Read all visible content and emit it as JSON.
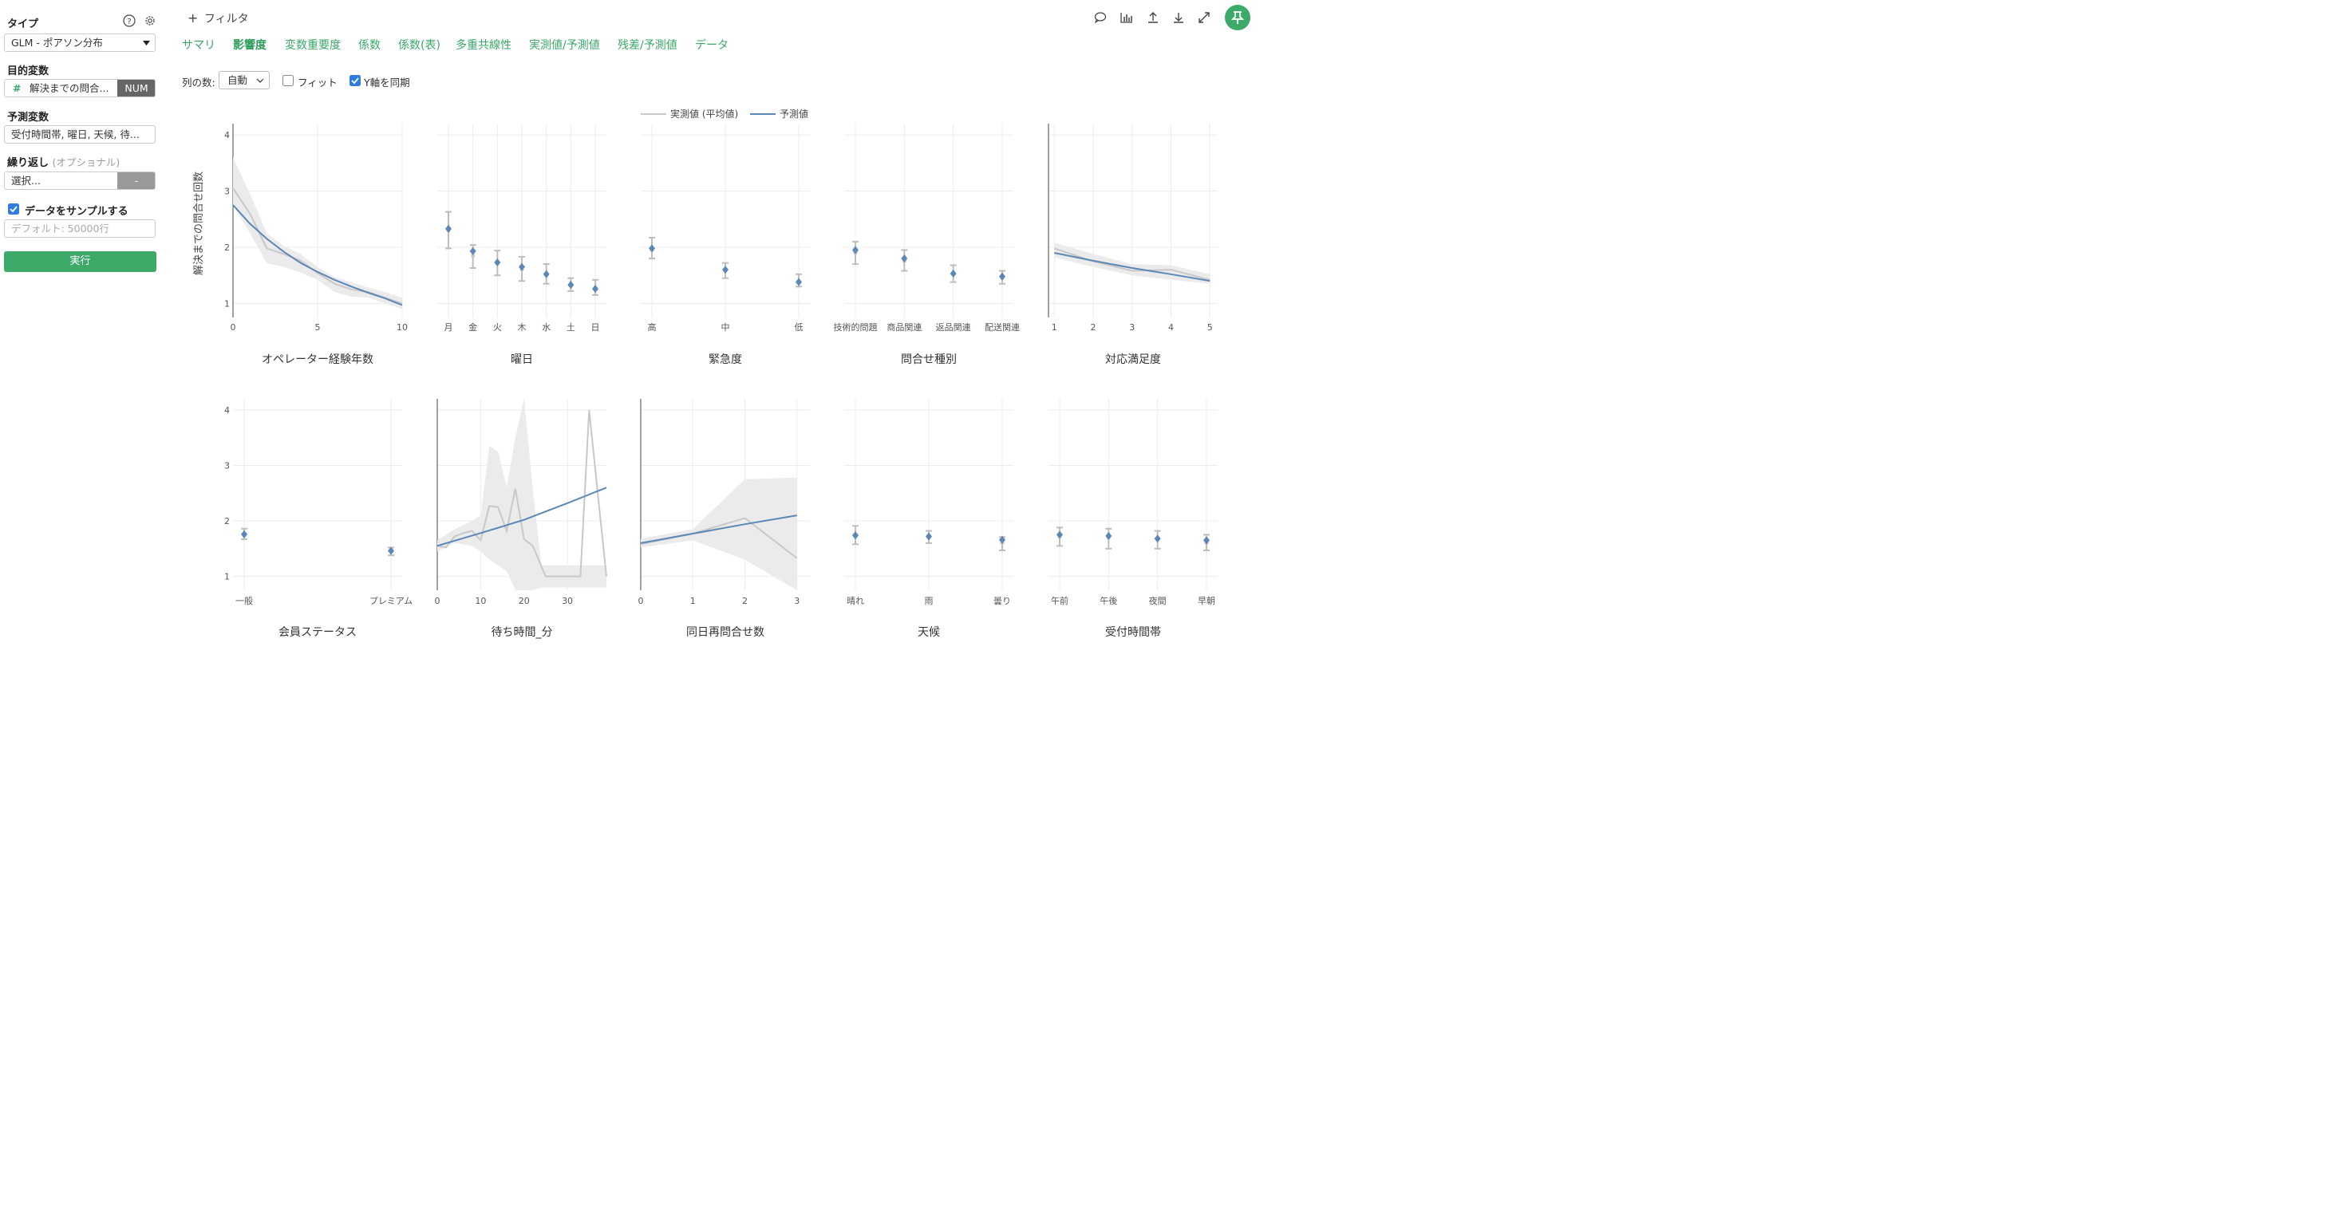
{
  "sidebar": {
    "type_label": "タイプ",
    "type_value": "GLM - ポアソン分布",
    "target_label": "目的変数",
    "target_value": "解決までの問合...",
    "target_badge": "NUM",
    "predictor_label": "予測変数",
    "predictor_value": "受付時間帯, 曜日, 天候, 待...",
    "repeat_label": "繰り返し",
    "repeat_optional": "(オプショナル)",
    "repeat_placeholder": "選択...",
    "repeat_btn": "-",
    "sample_label": "データをサンプルする",
    "sample_checked": true,
    "sample_placeholder": "デフォルト: 50000行",
    "run_label": "実行"
  },
  "toolbar": {
    "filter_label": "フィルタ",
    "icons": [
      "comment-icon",
      "chart-icon",
      "upload-icon",
      "download-icon",
      "expand-icon",
      "pin-icon"
    ]
  },
  "tabs": [
    {
      "label": "サマリ",
      "active": false
    },
    {
      "label": "影響度",
      "active": true
    },
    {
      "label": "変数重要度",
      "active": false
    },
    {
      "label": "係数",
      "active": false
    },
    {
      "label": "係数(表)",
      "active": false
    },
    {
      "label": "多重共線性",
      "active": false
    },
    {
      "label": "実測値/予測値",
      "active": false
    },
    {
      "label": "残差/予測値",
      "active": false
    },
    {
      "label": "データ",
      "active": false
    }
  ],
  "options": {
    "columns_label": "列の数:",
    "columns_value": "自動",
    "fit_label": "フィット",
    "fit_checked": false,
    "sync_label": "Y軸を同期",
    "sync_checked": true
  },
  "colors": {
    "accent": "#3aa768",
    "actual": "#c8c8c8",
    "predicted": "#5b87b7",
    "band": "#ebebeb"
  },
  "chart_data": {
    "legend": [
      "実測値 (平均値)",
      "予測値"
    ],
    "ylabel": "解決までの問合せ回数",
    "yticks": [
      "1",
      "2",
      "3",
      "4"
    ],
    "ylim": [
      0.75,
      4.2
    ],
    "panels": [
      {
        "title": "オペレーター経験年数",
        "type": "line",
        "xticks": [
          {
            "v": 0,
            "label": "0"
          },
          {
            "v": 5,
            "label": "5"
          },
          {
            "v": 10,
            "label": "10"
          }
        ],
        "xlim": [
          0,
          10
        ],
        "pred": [
          [
            0,
            2.75
          ],
          [
            1,
            2.42
          ],
          [
            2,
            2.15
          ],
          [
            3,
            1.92
          ],
          [
            4,
            1.72
          ],
          [
            5,
            1.56
          ],
          [
            6,
            1.42
          ],
          [
            7,
            1.3
          ],
          [
            8,
            1.19
          ],
          [
            9,
            1.09
          ],
          [
            10,
            0.97
          ]
        ],
        "actual": [
          [
            0,
            3.05
          ],
          [
            1,
            2.6
          ],
          [
            2,
            1.98
          ],
          [
            3,
            1.88
          ],
          [
            4,
            1.76
          ],
          [
            5,
            1.54
          ],
          [
            6,
            1.35
          ],
          [
            7,
            1.25
          ],
          [
            8,
            1.2
          ],
          [
            9,
            1.1
          ],
          [
            10,
            1.0
          ]
        ],
        "band": [
          [
            0,
            3.6,
            2.75
          ],
          [
            1,
            2.95,
            2.25
          ],
          [
            2,
            2.25,
            1.72
          ],
          [
            3,
            2.02,
            1.65
          ],
          [
            4,
            1.88,
            1.55
          ],
          [
            5,
            1.65,
            1.42
          ],
          [
            6,
            1.47,
            1.2
          ],
          [
            7,
            1.38,
            1.12
          ],
          [
            8,
            1.28,
            1.1
          ],
          [
            9,
            1.2,
            1.0
          ],
          [
            10,
            1.1,
            0.9
          ]
        ]
      },
      {
        "title": "曜日",
        "type": "points",
        "cats": [
          "月",
          "金",
          "火",
          "木",
          "水",
          "土",
          "日"
        ],
        "pred": [
          2.33,
          1.93,
          1.73,
          1.65,
          1.52,
          1.33,
          1.26
        ],
        "actual": [
          2.3,
          1.85,
          1.72,
          1.6,
          1.52,
          1.33,
          1.28
        ],
        "lo": [
          1.98,
          1.63,
          1.5,
          1.4,
          1.35,
          1.22,
          1.15
        ],
        "hi": [
          2.63,
          2.04,
          1.94,
          1.83,
          1.7,
          1.45,
          1.42
        ]
      },
      {
        "title": "緊急度",
        "type": "points",
        "cats": [
          "高",
          "中",
          "低"
        ],
        "pred": [
          1.98,
          1.6,
          1.38
        ],
        "actual": [
          1.95,
          1.58,
          1.4
        ],
        "lo": [
          1.8,
          1.45,
          1.3
        ],
        "hi": [
          2.17,
          1.72,
          1.52
        ]
      },
      {
        "title": "問合せ種別",
        "type": "points",
        "cats": [
          "技術的問題",
          "商品関連",
          "返品関連",
          "配送関連"
        ],
        "pred": [
          1.95,
          1.8,
          1.53,
          1.48
        ],
        "actual": [
          1.9,
          1.75,
          1.52,
          1.45
        ],
        "lo": [
          1.7,
          1.58,
          1.38,
          1.35
        ],
        "hi": [
          2.1,
          1.95,
          1.68,
          1.58
        ]
      },
      {
        "title": "対応満足度",
        "type": "line",
        "xticks": [
          {
            "v": 1,
            "label": "1"
          },
          {
            "v": 2,
            "label": "2"
          },
          {
            "v": 3,
            "label": "3"
          },
          {
            "v": 4,
            "label": "4"
          },
          {
            "v": 5,
            "label": "5"
          }
        ],
        "xlim": [
          0.85,
          5.2
        ],
        "pred": [
          [
            1,
            1.9
          ],
          [
            2,
            1.76
          ],
          [
            3,
            1.63
          ],
          [
            4,
            1.52
          ],
          [
            5,
            1.4
          ]
        ],
        "actual": [
          [
            1,
            1.98
          ],
          [
            2,
            1.75
          ],
          [
            3,
            1.58
          ],
          [
            4,
            1.6
          ],
          [
            5,
            1.42
          ]
        ],
        "band": [
          [
            1,
            2.08,
            1.82
          ],
          [
            2,
            1.88,
            1.65
          ],
          [
            3,
            1.7,
            1.5
          ],
          [
            4,
            1.68,
            1.42
          ],
          [
            5,
            1.52,
            1.35
          ]
        ]
      },
      {
        "title": "会員ステータス",
        "type": "points",
        "cats": [
          "一般",
          "プレミアム"
        ],
        "pred": [
          1.76,
          1.46
        ],
        "actual": [
          1.73,
          1.45
        ],
        "lo": [
          1.67,
          1.38
        ],
        "hi": [
          1.86,
          1.52
        ]
      },
      {
        "title": "待ち時間_分",
        "type": "line",
        "xticks": [
          {
            "v": 0,
            "label": "0"
          },
          {
            "v": 10,
            "label": "10"
          },
          {
            "v": 20,
            "label": "20"
          },
          {
            "v": 30,
            "label": "30"
          }
        ],
        "xlim": [
          0,
          39
        ],
        "pred": [
          [
            0,
            1.55
          ],
          [
            10,
            1.78
          ],
          [
            20,
            2.02
          ],
          [
            30,
            2.32
          ],
          [
            39,
            2.6
          ]
        ],
        "actual": [
          [
            0,
            1.55
          ],
          [
            2,
            1.52
          ],
          [
            4,
            1.72
          ],
          [
            6,
            1.78
          ],
          [
            8,
            1.82
          ],
          [
            10,
            1.65
          ],
          [
            12,
            2.27
          ],
          [
            14,
            2.25
          ],
          [
            16,
            1.82
          ],
          [
            18,
            2.58
          ],
          [
            20,
            1.67
          ],
          [
            22,
            1.55
          ],
          [
            25,
            1.0
          ],
          [
            30,
            1.0
          ],
          [
            33,
            1.0
          ],
          [
            35,
            4.0
          ],
          [
            37,
            2.5
          ],
          [
            39,
            1.0
          ]
        ],
        "band": [
          [
            0,
            1.65,
            1.45
          ],
          [
            4,
            1.85,
            1.6
          ],
          [
            8,
            2.0,
            1.55
          ],
          [
            10,
            2.1,
            1.45
          ],
          [
            12,
            3.35,
            1.3
          ],
          [
            14,
            3.25,
            1.2
          ],
          [
            16,
            2.6,
            1.1
          ],
          [
            18,
            3.5,
            0.75
          ],
          [
            20,
            4.2,
            0.75
          ],
          [
            22,
            2.6,
            0.75
          ],
          [
            24,
            1.2,
            0.8
          ],
          [
            39,
            1.2,
            0.8
          ]
        ]
      },
      {
        "title": "同日再問合せ数",
        "type": "line",
        "xticks": [
          {
            "v": 0,
            "label": "0"
          },
          {
            "v": 1,
            "label": "1"
          },
          {
            "v": 2,
            "label": "2"
          },
          {
            "v": 3,
            "label": "3"
          }
        ],
        "xlim": [
          0,
          3.25
        ],
        "pred": [
          [
            0,
            1.6
          ],
          [
            1,
            1.77
          ],
          [
            2,
            1.94
          ],
          [
            3,
            2.1
          ]
        ],
        "actual": [
          [
            0,
            1.58
          ],
          [
            1,
            1.77
          ],
          [
            2,
            2.05
          ],
          [
            3,
            1.33
          ]
        ],
        "band": [
          [
            0,
            1.68,
            1.52
          ],
          [
            1,
            1.85,
            1.65
          ],
          [
            2,
            2.75,
            1.3
          ],
          [
            3,
            2.78,
            0.75
          ]
        ]
      },
      {
        "title": "天候",
        "type": "points",
        "cats": [
          "晴れ",
          "雨",
          "曇り"
        ],
        "pred": [
          1.74,
          1.72,
          1.66
        ],
        "actual": [
          1.72,
          1.7,
          1.6
        ],
        "lo": [
          1.58,
          1.6,
          1.47
        ],
        "hi": [
          1.91,
          1.82,
          1.71
        ]
      },
      {
        "title": "受付時間帯",
        "type": "points",
        "cats": [
          "午前",
          "午後",
          "夜間",
          "早朝"
        ],
        "pred": [
          1.75,
          1.73,
          1.68,
          1.65
        ],
        "actual": [
          1.72,
          1.7,
          1.66,
          1.6
        ],
        "lo": [
          1.55,
          1.5,
          1.5,
          1.47
        ],
        "hi": [
          1.88,
          1.86,
          1.82,
          1.75
        ]
      }
    ]
  }
}
